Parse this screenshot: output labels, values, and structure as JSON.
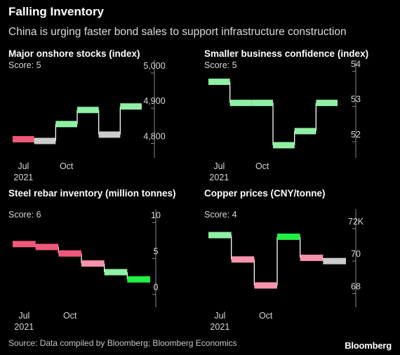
{
  "header": {
    "title": "Falling Inventory",
    "subtitle": "China is urging faster bond sales to support infrastructure construction"
  },
  "footer": {
    "source": "Source: Data compiled by Bloomberg; Bloomberg Economics",
    "brand": "Bloomberg"
  },
  "colors": {
    "red": "#f0587a",
    "pink": "#f893ac",
    "gray": "#cccccc",
    "light_green": "#8ff0a4",
    "green": "#22f043",
    "axis": "#888888"
  },
  "chart_data": [
    {
      "type": "step",
      "title": "Major onshore stocks (index)",
      "score": "Score: 5",
      "x_ticks": [
        {
          "label": "Jul",
          "sub": "2021",
          "index": 0
        },
        {
          "label": "Oct",
          "index": 2
        }
      ],
      "y_ticks": [
        {
          "value": 5000,
          "label": "5,000"
        },
        {
          "value": 4900,
          "label": "4,900"
        },
        {
          "value": 4800,
          "label": "4,800"
        }
      ],
      "ylim": [
        4775,
        5010
      ],
      "values": [
        4812,
        4807,
        4855,
        4895,
        4825,
        4905
      ],
      "colors": [
        "red",
        "gray",
        "light_green",
        "light_green",
        "gray",
        "light_green"
      ]
    },
    {
      "type": "step",
      "title": "Smaller business confidence (index)",
      "score": "Score: 5",
      "x_ticks": [
        {
          "label": "Jul",
          "sub": "2021",
          "index": 0
        },
        {
          "label": "Oct",
          "index": 2
        }
      ],
      "y_ticks": [
        {
          "value": 54,
          "label": "54"
        },
        {
          "value": 53,
          "label": "53"
        },
        {
          "value": 52,
          "label": "52"
        }
      ],
      "ylim": [
        51.7,
        54.05
      ],
      "values": [
        53.7,
        53.1,
        53.1,
        51.9,
        52.3,
        53.1
      ],
      "colors": [
        "light_green",
        "light_green",
        "light_green",
        "light_green",
        "light_green",
        "light_green"
      ]
    },
    {
      "type": "step",
      "title": "Steel rebar inventory (million tonnes)",
      "score": "Score: 6",
      "x_ticks": [
        {
          "label": "Jul",
          "sub": "2021",
          "index": 0
        },
        {
          "label": "Oct",
          "index": 2
        }
      ],
      "y_ticks": [
        {
          "value": 10,
          "label": "10"
        },
        {
          "value": 5,
          "label": "5"
        },
        {
          "value": 0,
          "label": "0"
        }
      ],
      "ylim": [
        -1,
        10.5
      ],
      "values": [
        7.0,
        6.6,
        5.7,
        4.3,
        3.1,
        2.1
      ],
      "colors": [
        "red",
        "red",
        "red",
        "pink",
        "light_green",
        "green"
      ]
    },
    {
      "type": "step",
      "title": "Copper prices (CNY/tonne)",
      "score": "Score: 4",
      "x_ticks": [
        {
          "label": "Jul",
          "sub": "2021",
          "index": 0
        },
        {
          "label": "Oct",
          "index": 2
        }
      ],
      "y_ticks": [
        {
          "value": 72,
          "label": "72K"
        },
        {
          "value": 70,
          "label": "70"
        },
        {
          "value": 68,
          "label": "68"
        }
      ],
      "ylim": [
        67.5,
        72.6
      ],
      "values": [
        71.6,
        70.1,
        68.5,
        71.5,
        70.2,
        70.0
      ],
      "colors": [
        "light_green",
        "pink",
        "pink",
        "green",
        "pink",
        "gray"
      ]
    }
  ]
}
